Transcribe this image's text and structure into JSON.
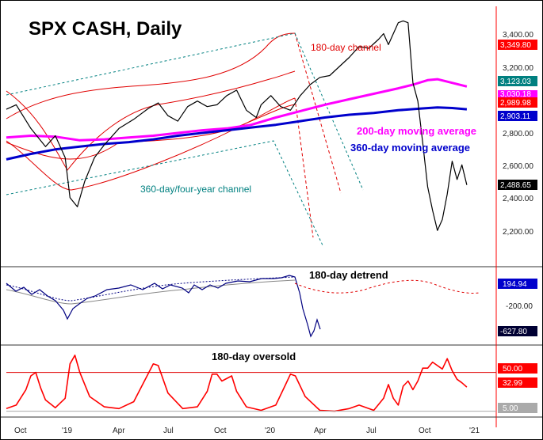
{
  "chart_data": {
    "type": "line",
    "title": "SPX CASH, Daily",
    "x_axis": {
      "tick_labels": [
        "Oct",
        "'19",
        "Apr",
        "Jul",
        "Oct",
        "'20",
        "Apr",
        "Jul",
        "Oct",
        "'21"
      ]
    },
    "price_panel": {
      "y_range": [
        2050,
        3470
      ],
      "y_ticks": [
        "3,400.00",
        "3,200.00",
        "2,800.00",
        "2,600.00",
        "2,400.00",
        "2,200.00"
      ],
      "annotations": {
        "channel_180": "180-day channel",
        "ma_200": "200-day moving average",
        "ma_360": "360-day moving average",
        "channel_360": "360-day/four-year channel"
      },
      "badges": [
        {
          "label": "3,349.80",
          "color": "#ff0000",
          "value": 3349.8
        },
        {
          "label": "3,123.03",
          "color": "#008080",
          "value": 3123.03
        },
        {
          "label": "3,030.18",
          "color": "#ff00ff",
          "value": 3030.18
        },
        {
          "label": "2,989.98",
          "color": "#ff0000",
          "value": 2989.98
        },
        {
          "label": "2,903.11",
          "color": "#0000cc",
          "value": 2903.11
        },
        {
          "label": "2,488.65",
          "color": "#000000",
          "value": 2488.65
        }
      ],
      "series": [
        {
          "name": "SPX close",
          "color": "#000000",
          "points": [
            [
              0,
              2905
            ],
            [
              0.02,
              2930
            ],
            [
              0.05,
              2800
            ],
            [
              0.08,
              2700
            ],
            [
              0.1,
              2760
            ],
            [
              0.12,
              2640
            ],
            [
              0.13,
              2420
            ],
            [
              0.145,
              2370
            ],
            [
              0.16,
              2510
            ],
            [
              0.18,
              2640
            ],
            [
              0.2,
              2710
            ],
            [
              0.23,
              2800
            ],
            [
              0.26,
              2850
            ],
            [
              0.29,
              2910
            ],
            [
              0.31,
              2940
            ],
            [
              0.33,
              2870
            ],
            [
              0.35,
              2840
            ],
            [
              0.37,
              2920
            ],
            [
              0.39,
              2950
            ],
            [
              0.41,
              2920
            ],
            [
              0.43,
              2930
            ],
            [
              0.45,
              2980
            ],
            [
              0.47,
              3010
            ],
            [
              0.49,
              2900
            ],
            [
              0.51,
              2860
            ],
            [
              0.52,
              2930
            ],
            [
              0.54,
              2980
            ],
            [
              0.56,
              2920
            ],
            [
              0.58,
              2900
            ],
            [
              0.6,
              2980
            ],
            [
              0.62,
              3040
            ],
            [
              0.64,
              3080
            ],
            [
              0.66,
              3090
            ],
            [
              0.68,
              3140
            ],
            [
              0.7,
              3190
            ],
            [
              0.72,
              3250
            ],
            [
              0.74,
              3240
            ],
            [
              0.76,
              3290
            ],
            [
              0.77,
              3320
            ],
            [
              0.78,
              3260
            ],
            [
              0.79,
              3320
            ],
            [
              0.8,
              3380
            ],
            [
              0.81,
              3390
            ],
            [
              0.82,
              3380
            ],
            [
              0.83,
              3050
            ],
            [
              0.84,
              2950
            ],
            [
              0.85,
              2720
            ],
            [
              0.86,
              2480
            ],
            [
              0.87,
              2350
            ],
            [
              0.88,
              2240
            ],
            [
              0.89,
              2300
            ],
            [
              0.9,
              2440
            ],
            [
              0.91,
              2620
            ],
            [
              0.92,
              2520
            ],
            [
              0.93,
              2600
            ],
            [
              0.94,
              2490
            ]
          ]
        },
        {
          "name": "200-day moving average",
          "color": "#ff00ff",
          "points": [
            [
              0,
              2750
            ],
            [
              0.05,
              2760
            ],
            [
              0.1,
              2755
            ],
            [
              0.15,
              2735
            ],
            [
              0.2,
              2740
            ],
            [
              0.25,
              2750
            ],
            [
              0.3,
              2760
            ],
            [
              0.35,
              2775
            ],
            [
              0.4,
              2790
            ],
            [
              0.45,
              2800
            ],
            [
              0.5,
              2820
            ],
            [
              0.55,
              2860
            ],
            [
              0.6,
              2895
            ],
            [
              0.65,
              2930
            ],
            [
              0.7,
              2960
            ],
            [
              0.75,
              2990
            ],
            [
              0.8,
              3020
            ],
            [
              0.83,
              3040
            ],
            [
              0.86,
              3065
            ],
            [
              0.88,
              3070
            ],
            [
              0.91,
              3050
            ],
            [
              0.94,
              3030
            ]
          ]
        },
        {
          "name": "360-day moving average",
          "color": "#0000cc",
          "points": [
            [
              0,
              2630
            ],
            [
              0.05,
              2660
            ],
            [
              0.1,
              2685
            ],
            [
              0.15,
              2700
            ],
            [
              0.2,
              2715
            ],
            [
              0.25,
              2725
            ],
            [
              0.3,
              2740
            ],
            [
              0.35,
              2760
            ],
            [
              0.4,
              2775
            ],
            [
              0.45,
              2790
            ],
            [
              0.5,
              2805
            ],
            [
              0.55,
              2820
            ],
            [
              0.6,
              2840
            ],
            [
              0.65,
              2860
            ],
            [
              0.7,
              2875
            ],
            [
              0.75,
              2885
            ],
            [
              0.8,
              2900
            ],
            [
              0.85,
              2910
            ],
            [
              0.88,
              2915
            ],
            [
              0.91,
              2912
            ],
            [
              0.94,
              2905
            ]
          ]
        }
      ]
    },
    "detrend_panel": {
      "label": "180-day detrend",
      "y_ticks": [
        "-200.00"
      ],
      "badges": [
        {
          "label": "194.94",
          "color": "#0000cc"
        },
        {
          "label": "-627.80",
          "color": "#000033"
        }
      ]
    },
    "oversold_panel": {
      "label": "180-day oversold",
      "badges": [
        {
          "label": "50.00",
          "color": "#ff0000",
          "value": 50
        },
        {
          "label": "32.99",
          "color": "#ff0000",
          "value": 32.99
        },
        {
          "label": "5.00",
          "color": "#aaaaaa",
          "value": 5
        }
      ],
      "series": {
        "name": "180-day oversold",
        "color": "#ff0000",
        "points": [
          [
            0,
            8
          ],
          [
            0.02,
            12
          ],
          [
            0.04,
            30
          ],
          [
            0.05,
            46
          ],
          [
            0.06,
            50
          ],
          [
            0.07,
            32
          ],
          [
            0.08,
            18
          ],
          [
            0.1,
            9
          ],
          [
            0.12,
            20
          ],
          [
            0.13,
            60
          ],
          [
            0.14,
            70
          ],
          [
            0.15,
            50
          ],
          [
            0.17,
            22
          ],
          [
            0.2,
            10
          ],
          [
            0.23,
            8
          ],
          [
            0.26,
            16
          ],
          [
            0.28,
            38
          ],
          [
            0.3,
            60
          ],
          [
            0.31,
            58
          ],
          [
            0.33,
            26
          ],
          [
            0.36,
            8
          ],
          [
            0.39,
            10
          ],
          [
            0.41,
            28
          ],
          [
            0.42,
            48
          ],
          [
            0.43,
            48
          ],
          [
            0.44,
            40
          ],
          [
            0.46,
            46
          ],
          [
            0.47,
            28
          ],
          [
            0.49,
            10
          ],
          [
            0.52,
            6
          ],
          [
            0.55,
            12
          ],
          [
            0.57,
            36
          ],
          [
            0.58,
            48
          ],
          [
            0.59,
            46
          ],
          [
            0.61,
            22
          ],
          [
            0.64,
            6
          ],
          [
            0.67,
            5
          ],
          [
            0.7,
            8
          ],
          [
            0.72,
            12
          ],
          [
            0.75,
            6
          ],
          [
            0.77,
            20
          ],
          [
            0.78,
            36
          ],
          [
            0.79,
            20
          ],
          [
            0.8,
            12
          ],
          [
            0.81,
            34
          ],
          [
            0.82,
            40
          ],
          [
            0.83,
            30
          ],
          [
            0.84,
            40
          ],
          [
            0.85,
            55
          ],
          [
            0.86,
            55
          ],
          [
            0.87,
            62
          ],
          [
            0.89,
            54
          ],
          [
            0.9,
            66
          ],
          [
            0.91,
            52
          ],
          [
            0.92,
            42
          ],
          [
            0.93,
            38
          ],
          [
            0.94,
            33
          ]
        ]
      }
    }
  }
}
